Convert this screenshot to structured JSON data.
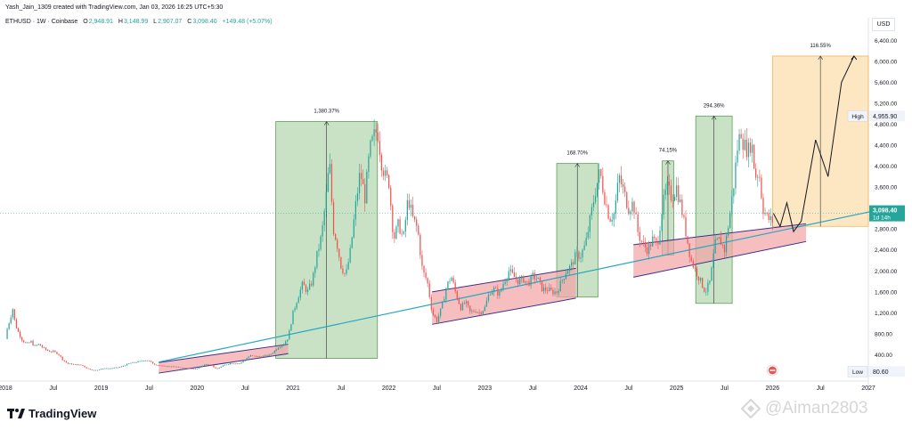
{
  "header": {
    "author_line": "Yash_Jain_1309 created with TradingView.com, Jan 03, 2026 16:25 UTC+5:30",
    "symbol": "ETHUSD · 1W · Coinbase",
    "ohlc": [
      {
        "label": "O",
        "value": "2,948.91"
      },
      {
        "label": "H",
        "value": "3,148.99"
      },
      {
        "label": "L",
        "value": "2,907.07"
      },
      {
        "label": "C",
        "value": "3,098.40"
      }
    ],
    "change": "+149.48 (+5.07%)"
  },
  "currency_label": "USD",
  "footer": {
    "brand": "TradingView",
    "watermark": "@Aiman2803"
  },
  "colors": {
    "up": "#26a69a",
    "down": "#ef5350",
    "trendline": "#22a7c4",
    "green_zone": "#a5cfa0",
    "orange_zone": "#fbd79a",
    "pink_channel": "#f4a3a5",
    "channel_line": "#3b2f8f"
  },
  "chart_data": {
    "type": "candlestick",
    "y_scale": "linear",
    "ylim": [
      80.6,
      6600
    ],
    "y_ticks": [
      "400.00",
      "800.00",
      "1,200.00",
      "1,600.00",
      "2,000.00",
      "2,400.00",
      "2,800.00",
      "3,200.00",
      "3,600.00",
      "4,000.00",
      "4,400.00",
      "4,800.00",
      "5,200.00",
      "5,600.00",
      "6,000.00",
      "6,400.00"
    ],
    "x_ticks": [
      "2018",
      "Jul",
      "2019",
      "Jul",
      "2020",
      "Jul",
      "2021",
      "Jul",
      "2022",
      "Jul",
      "2023",
      "Jul",
      "2024",
      "Jul",
      "2025",
      "Jul",
      "2026",
      "Jul",
      "2027"
    ],
    "x_range": [
      2018.0,
      2027.0
    ],
    "price_tags": [
      {
        "label": "High",
        "value": "4,955.90",
        "y": 4955.9
      },
      {
        "label": "",
        "value": "3,098.40",
        "sub": "1d 14h",
        "y": 3098.4,
        "current": true
      },
      {
        "label": "Low",
        "value": "80.60",
        "y": 80.6
      }
    ],
    "price_path": [
      [
        2018.0,
        700
      ],
      [
        2018.02,
        900
      ],
      [
        2018.05,
        1100
      ],
      [
        2018.08,
        1300
      ],
      [
        2018.1,
        1000
      ],
      [
        2018.13,
        850
      ],
      [
        2018.17,
        700
      ],
      [
        2018.22,
        600
      ],
      [
        2018.27,
        650
      ],
      [
        2018.3,
        560
      ],
      [
        2018.35,
        600
      ],
      [
        2018.4,
        520
      ],
      [
        2018.45,
        470
      ],
      [
        2018.5,
        460
      ],
      [
        2018.55,
        420
      ],
      [
        2018.6,
        300
      ],
      [
        2018.65,
        230
      ],
      [
        2018.7,
        220
      ],
      [
        2018.75,
        210
      ],
      [
        2018.8,
        200
      ],
      [
        2018.85,
        140
      ],
      [
        2018.9,
        110
      ],
      [
        2018.95,
        100
      ],
      [
        2019.0,
        135
      ],
      [
        2019.1,
        140
      ],
      [
        2019.2,
        165
      ],
      [
        2019.3,
        240
      ],
      [
        2019.4,
        270
      ],
      [
        2019.45,
        300
      ],
      [
        2019.5,
        280
      ],
      [
        2019.55,
        220
      ],
      [
        2019.65,
        180
      ],
      [
        2019.75,
        175
      ],
      [
        2019.85,
        150
      ],
      [
        2019.95,
        130
      ],
      [
        2020.0,
        135
      ],
      [
        2020.1,
        230
      ],
      [
        2020.15,
        200
      ],
      [
        2020.2,
        125
      ],
      [
        2020.28,
        200
      ],
      [
        2020.35,
        240
      ],
      [
        2020.45,
        235
      ],
      [
        2020.55,
        380
      ],
      [
        2020.65,
        360
      ],
      [
        2020.75,
        390
      ],
      [
        2020.8,
        460
      ],
      [
        2020.85,
        560
      ],
      [
        2020.9,
        600
      ],
      [
        2020.95,
        730
      ],
      [
        2021.0,
        1200
      ],
      [
        2021.05,
        1500
      ],
      [
        2021.1,
        1750
      ],
      [
        2021.15,
        1600
      ],
      [
        2021.2,
        1800
      ],
      [
        2021.25,
        2300
      ],
      [
        2021.3,
        2700
      ],
      [
        2021.35,
        3500
      ],
      [
        2021.38,
        4100
      ],
      [
        2021.42,
        2800
      ],
      [
        2021.45,
        2600
      ],
      [
        2021.5,
        2100
      ],
      [
        2021.55,
        1900
      ],
      [
        2021.6,
        2400
      ],
      [
        2021.65,
        3200
      ],
      [
        2021.7,
        3900
      ],
      [
        2021.75,
        3400
      ],
      [
        2021.8,
        4300
      ],
      [
        2021.85,
        4600
      ],
      [
        2021.88,
        4700
      ],
      [
        2021.92,
        4100
      ],
      [
        2021.96,
        3800
      ],
      [
        2022.0,
        3700
      ],
      [
        2022.05,
        2600
      ],
      [
        2022.1,
        2900
      ],
      [
        2022.15,
        2600
      ],
      [
        2022.2,
        3400
      ],
      [
        2022.25,
        3000
      ],
      [
        2022.3,
        2800
      ],
      [
        2022.35,
        2000
      ],
      [
        2022.4,
        1800
      ],
      [
        2022.45,
        1200
      ],
      [
        2022.5,
        1050
      ],
      [
        2022.55,
        1300
      ],
      [
        2022.6,
        1700
      ],
      [
        2022.65,
        1900
      ],
      [
        2022.7,
        1550
      ],
      [
        2022.75,
        1300
      ],
      [
        2022.8,
        1400
      ],
      [
        2022.85,
        1200
      ],
      [
        2022.9,
        1250
      ],
      [
        2022.95,
        1200
      ],
      [
        2023.0,
        1300
      ],
      [
        2023.05,
        1600
      ],
      [
        2023.1,
        1650
      ],
      [
        2023.15,
        1550
      ],
      [
        2023.2,
        1800
      ],
      [
        2023.25,
        2000
      ],
      [
        2023.3,
        1900
      ],
      [
        2023.35,
        1800
      ],
      [
        2023.4,
        1850
      ],
      [
        2023.45,
        1750
      ],
      [
        2023.5,
        1900
      ],
      [
        2023.55,
        1850
      ],
      [
        2023.6,
        1650
      ],
      [
        2023.65,
        1650
      ],
      [
        2023.7,
        1600
      ],
      [
        2023.75,
        1600
      ],
      [
        2023.8,
        1800
      ],
      [
        2023.85,
        2000
      ],
      [
        2023.9,
        2100
      ],
      [
        2023.95,
        2300
      ],
      [
        2024.0,
        2300
      ],
      [
        2024.05,
        2500
      ],
      [
        2024.1,
        3000
      ],
      [
        2024.15,
        3500
      ],
      [
        2024.2,
        3900
      ],
      [
        2024.25,
        3400
      ],
      [
        2024.3,
        3000
      ],
      [
        2024.35,
        3100
      ],
      [
        2024.4,
        3800
      ],
      [
        2024.45,
        3500
      ],
      [
        2024.5,
        3200
      ],
      [
        2024.55,
        3300
      ],
      [
        2024.6,
        2700
      ],
      [
        2024.65,
        2500
      ],
      [
        2024.7,
        2400
      ],
      [
        2024.75,
        2600
      ],
      [
        2024.8,
        2500
      ],
      [
        2024.85,
        3200
      ],
      [
        2024.9,
        3600
      ],
      [
        2024.95,
        3400
      ],
      [
        2025.0,
        3600
      ],
      [
        2025.05,
        3200
      ],
      [
        2025.1,
        2700
      ],
      [
        2025.15,
        2200
      ],
      [
        2025.2,
        2000
      ],
      [
        2025.25,
        1800
      ],
      [
        2025.3,
        1600
      ],
      [
        2025.35,
        1800
      ],
      [
        2025.4,
        2500
      ],
      [
        2025.45,
        2600
      ],
      [
        2025.5,
        2400
      ],
      [
        2025.55,
        3000
      ],
      [
        2025.6,
        3700
      ],
      [
        2025.63,
        4300
      ],
      [
        2025.67,
        4700
      ],
      [
        2025.7,
        4400
      ],
      [
        2025.75,
        4300
      ],
      [
        2025.78,
        4500
      ],
      [
        2025.82,
        3800
      ],
      [
        2025.86,
        3900
      ],
      [
        2025.9,
        3200
      ],
      [
        2025.95,
        3000
      ],
      [
        2026.0,
        2950
      ],
      [
        2026.01,
        3098
      ]
    ],
    "projection": [
      [
        2026.01,
        3098
      ],
      [
        2026.08,
        2850
      ],
      [
        2026.15,
        3300
      ],
      [
        2026.22,
        2750
      ],
      [
        2026.3,
        2950
      ],
      [
        2026.45,
        4500
      ],
      [
        2026.58,
        3800
      ],
      [
        2026.72,
        5600
      ],
      [
        2026.85,
        6100
      ]
    ],
    "trendline": [
      [
        2019.6,
        260
      ],
      [
        2027.2,
        3200
      ]
    ],
    "channels": [
      {
        "top": [
          [
            2019.6,
            250
          ],
          [
            2020.95,
            600
          ]
        ],
        "bottom": [
          [
            2019.6,
            50
          ],
          [
            2020.95,
            420
          ]
        ]
      },
      {
        "top": [
          [
            2022.45,
            1600
          ],
          [
            2023.95,
            2050
          ]
        ],
        "bottom": [
          [
            2022.45,
            980
          ],
          [
            2023.95,
            1480
          ]
        ]
      },
      {
        "top": [
          [
            2024.55,
            2500
          ],
          [
            2026.35,
            2900
          ]
        ],
        "bottom": [
          [
            2024.55,
            1880
          ],
          [
            2026.35,
            2560
          ]
        ]
      }
    ],
    "zones": [
      {
        "label": "1,380.37%",
        "x0": 2020.82,
        "x1": 2021.88,
        "y0": 330,
        "y1": 4850,
        "kind": "green"
      },
      {
        "label": "168.70%",
        "x0": 2023.75,
        "x1": 2024.18,
        "y0": 1500,
        "y1": 4050,
        "kind": "green"
      },
      {
        "label": "74.15%",
        "x0": 2024.85,
        "x1": 2024.97,
        "y0": 2300,
        "y1": 4100,
        "kind": "green"
      },
      {
        "label": "294.36%",
        "x0": 2025.2,
        "x1": 2025.58,
        "y0": 1380,
        "y1": 4955.9,
        "kind": "green"
      },
      {
        "label": "116.55%",
        "x0": 2026.0,
        "x1": 2027.0,
        "y0": 2850,
        "y1": 6100,
        "kind": "orange"
      }
    ]
  }
}
